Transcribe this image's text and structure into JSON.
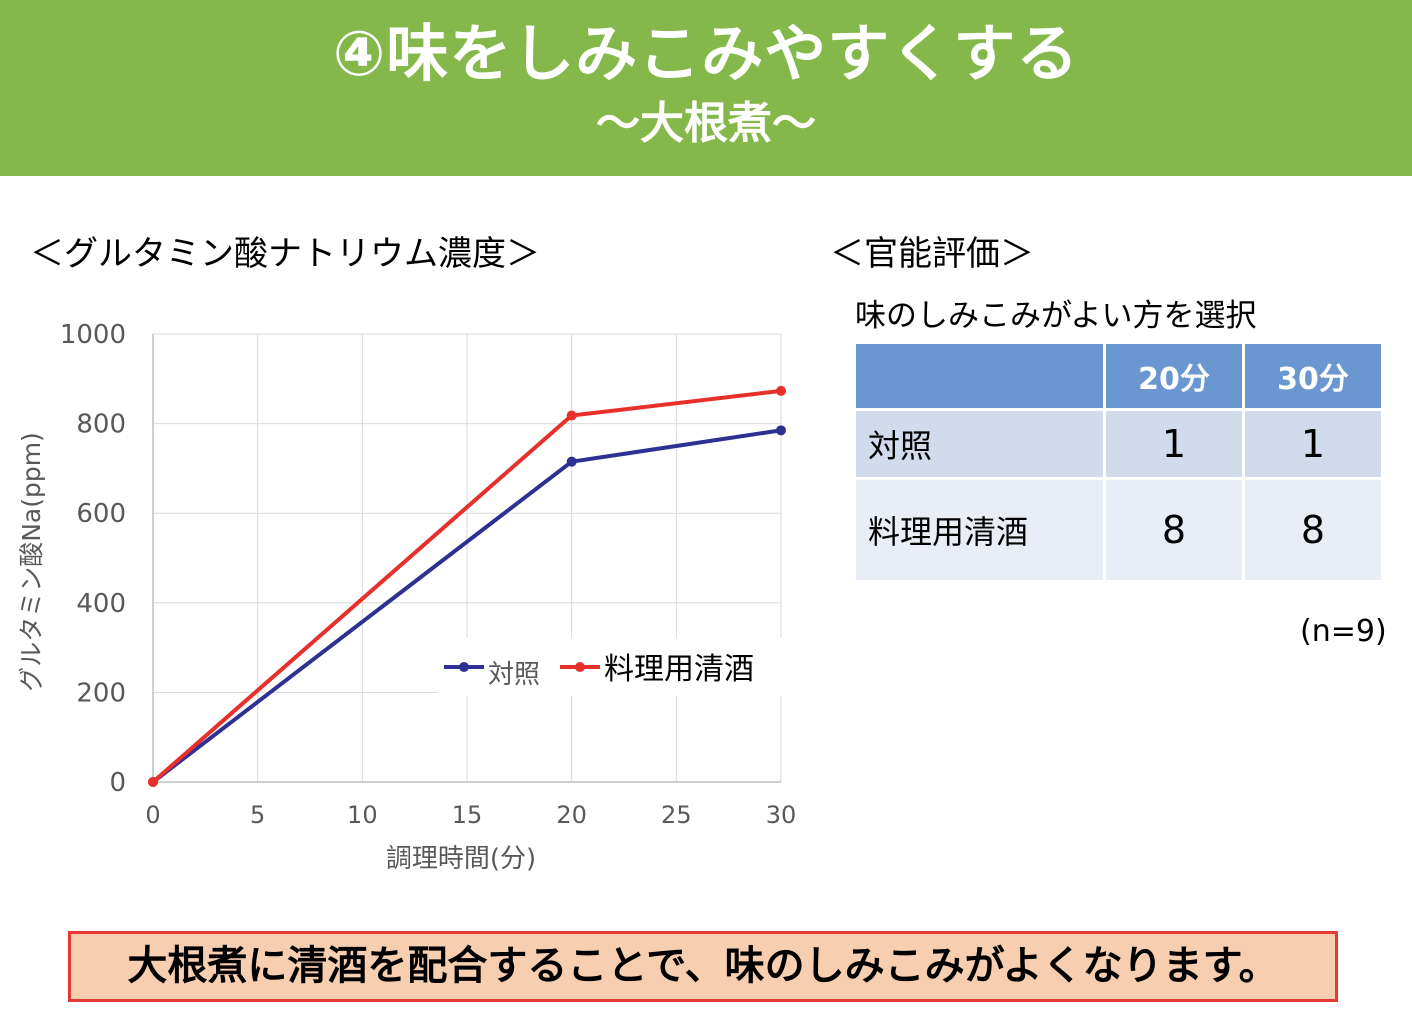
{
  "header": {
    "title": "④味をしみこみやすくする",
    "subtitle": "〜大根煮〜"
  },
  "left_section_title": "＜グルタミン酸ナトリウム濃度＞",
  "right_section_title": "＜官能評価＞",
  "chart_data": {
    "type": "line",
    "title": "",
    "xlabel": "調理時間(分)",
    "ylabel": "グルタミン酸Na(ppm)",
    "x": [
      0,
      20,
      30
    ],
    "xlim": [
      0,
      30
    ],
    "ylim": [
      0,
      1000
    ],
    "x_ticks": [
      "0",
      "5",
      "10",
      "15",
      "20",
      "25",
      "30"
    ],
    "y_ticks": [
      "0",
      "200",
      "400",
      "600",
      "800",
      "1000"
    ],
    "grid": true,
    "legend_position": "center-right",
    "series": [
      {
        "name": "対照",
        "color": "#2e3192",
        "values": [
          0,
          715,
          785
        ]
      },
      {
        "name": "料理用清酒",
        "color": "#e8302a",
        "values": [
          0,
          818,
          873
        ]
      }
    ]
  },
  "evaluation": {
    "subtitle": "味のしみこみがよい方を選択",
    "columns": [
      "",
      "20分",
      "30分"
    ],
    "rows": [
      {
        "label": "対照",
        "values": [
          "1",
          "1"
        ]
      },
      {
        "label": "料理用清酒",
        "values": [
          "8",
          "8"
        ]
      }
    ],
    "note": "(n=9)"
  },
  "conclusion": "大根煮に清酒を配合することで、味のしみこみがよくなります。"
}
